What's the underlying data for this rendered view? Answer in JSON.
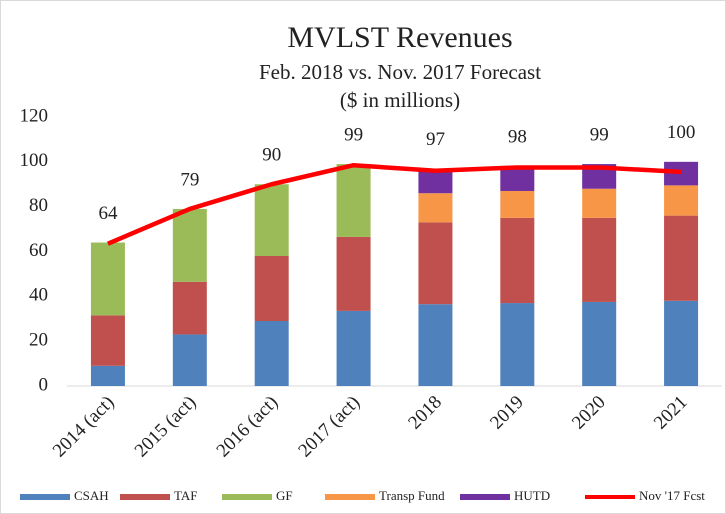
{
  "chart_data": {
    "type": "stacked-bar",
    "title": "MVLST Revenues",
    "subtitle": "Feb. 2018 vs. Nov. 2017 Forecast",
    "y_label": "($ in millions)",
    "categories": [
      "2014 (act)",
      "2015 (act)",
      "2016 (act)",
      "2017 (act)",
      "2018",
      "2019",
      "2020",
      "2021"
    ],
    "series": [
      {
        "name": "CSAH",
        "color": "#4f81bd",
        "values": [
          9,
          23,
          29,
          33.5,
          36.5,
          37,
          37.5,
          38
        ]
      },
      {
        "name": "TAF",
        "color": "#c0504d",
        "values": [
          22.5,
          23.5,
          29,
          33,
          36.5,
          38,
          37.5,
          38
        ]
      },
      {
        "name": "GF",
        "color": "#9bbb59",
        "values": [
          32.5,
          32.5,
          32,
          32.5,
          0,
          0,
          0,
          0
        ]
      },
      {
        "name": "Transp Fund",
        "color": "#f79646",
        "values": [
          0,
          0,
          0,
          0,
          13,
          12,
          13,
          13.5
        ]
      },
      {
        "name": "HUTD",
        "color": "#7030a0",
        "values": [
          0,
          0,
          0,
          0,
          11,
          11,
          11,
          10.5
        ]
      },
      {
        "name": "Nov '17 Fcst",
        "color": "#ff0000",
        "type": "line",
        "values": [
          63.5,
          79,
          90,
          98.5,
          96,
          97.5,
          97.5,
          95.5
        ]
      }
    ],
    "totals": [
      64,
      79,
      90,
      99,
      97,
      98,
      99,
      100
    ],
    "ylim": [
      0,
      120
    ],
    "yticks": [
      0,
      20,
      40,
      60,
      80,
      100,
      120
    ],
    "grid": false,
    "legend": "bottom"
  }
}
